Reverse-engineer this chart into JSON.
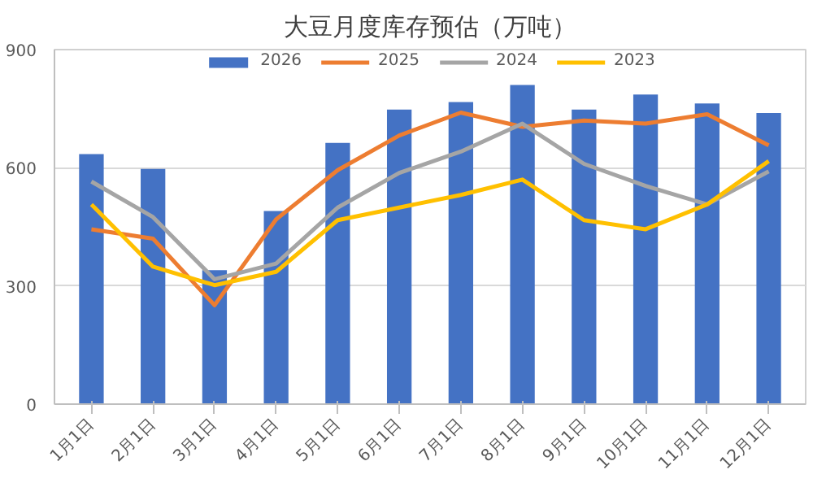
{
  "chart_data": {
    "type": "bar",
    "title": "大豆月度库存预估（万吨）",
    "categories": [
      "1月1日",
      "2月1日",
      "3月1日",
      "4月1日",
      "5月1日",
      "6月1日",
      "7月1日",
      "8月1日",
      "9月1日",
      "10月1日",
      "11月1日",
      "12月1日"
    ],
    "series": [
      {
        "name": "2026",
        "color": "#4472c4",
        "values": [
          635,
          597,
          340,
          490,
          663,
          748,
          767,
          810,
          748,
          786,
          763,
          739
        ]
      },
      {
        "name": "2025",
        "color": "#ed7d31",
        "type": "line",
        "values": [
          444,
          420,
          251,
          469,
          594,
          682,
          740,
          704,
          720,
          712,
          736,
          657
        ]
      },
      {
        "name": "2024",
        "color": "#a5a5a5",
        "type": "line",
        "values": [
          565,
          475,
          317,
          357,
          499,
          587,
          641,
          712,
          610,
          554,
          507,
          591
        ]
      },
      {
        "name": "2023",
        "color": "#ffc000",
        "type": "line",
        "values": [
          507,
          349,
          302,
          336,
          467,
          499,
          531,
          570,
          467,
          444,
          507,
          617
        ]
      }
    ],
    "ylim": [
      0,
      900
    ],
    "yticks": [
      0,
      300,
      600,
      900
    ],
    "grid": "y",
    "legend": "top"
  }
}
